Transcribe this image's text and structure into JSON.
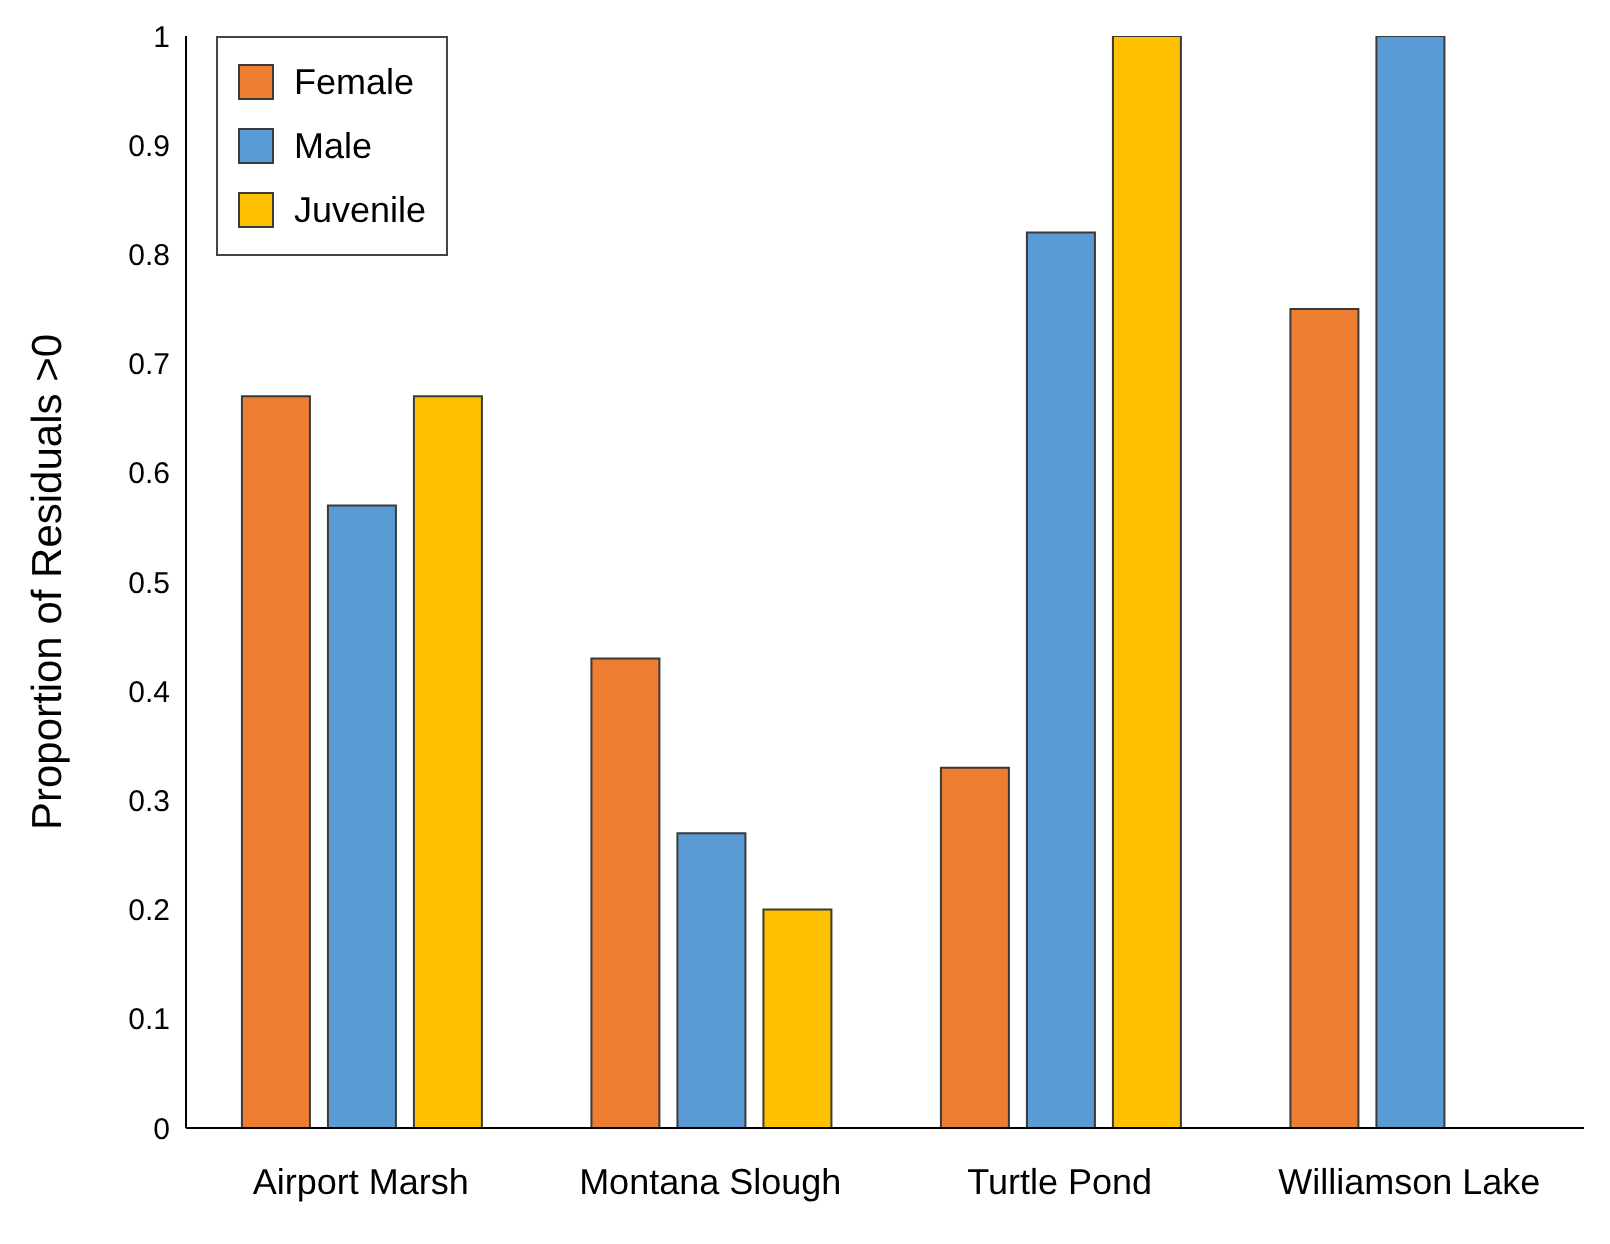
{
  "chart_data": {
    "type": "bar",
    "ylabel": "Proportion of Residuals >0",
    "categories": [
      "Airport Marsh",
      "Montana Slough",
      "Turtle Pond",
      "Williamson Lake"
    ],
    "series": [
      {
        "name": "Female",
        "color": "#ed7d31",
        "values": [
          0.67,
          0.43,
          0.33,
          0.75
        ]
      },
      {
        "name": "Male",
        "color": "#5b9bd5",
        "values": [
          0.57,
          0.27,
          0.82,
          1
        ]
      },
      {
        "name": "Juvenile",
        "color": "#ffc000",
        "values": [
          0.67,
          0.2,
          1,
          null
        ]
      }
    ],
    "ylim": [
      0,
      1
    ],
    "yticks": [
      0,
      0.1,
      0.2,
      0.3,
      0.4,
      0.5,
      0.6,
      0.7,
      0.8,
      0.9,
      1
    ],
    "grid": false,
    "legend": "top left"
  }
}
